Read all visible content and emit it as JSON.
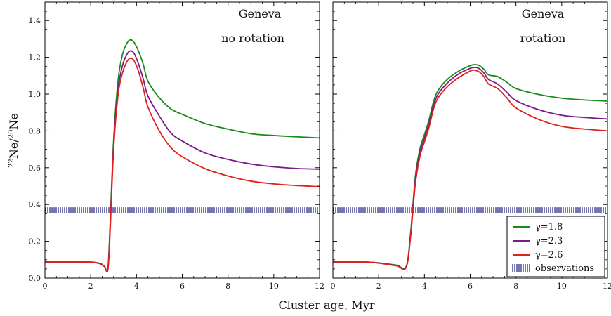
{
  "figure": {
    "xlabel": "Cluster age, Myr",
    "ylabel": "22Ne/20Ne",
    "ylabel_parts": {
      "sup1": "22",
      "base1": "Ne/",
      "sup2": "20",
      "base2": "Ne"
    },
    "colors": {
      "gamma_1_8": "#1a8a1a",
      "gamma_2_3": "#7a1a8a",
      "gamma_2_6": "#e0201a",
      "observations": "#3a3a8e",
      "model_label": "#1a1a8a"
    }
  },
  "legend": {
    "entries": [
      "γ=1.8",
      "γ=2.3",
      "γ=2.6",
      "observations"
    ],
    "placement": "bottom-right of right panel"
  },
  "chart_data": [
    {
      "type": "line",
      "panel_label": "no rotation",
      "model_label": "Geneva",
      "xlim": [
        0,
        12
      ],
      "ylim": [
        0,
        1.5
      ],
      "x_ticks": [
        "0",
        "2",
        "4",
        "6",
        "8",
        "10",
        "12"
      ],
      "y_ticks": [
        "0.0",
        "0.2",
        "0.4",
        "0.6",
        "0.8",
        "1.0",
        "1.2",
        "1.4"
      ],
      "observations": {
        "y_min": 0.355,
        "y_max": 0.385
      },
      "series": [
        {
          "name": "γ=1.8",
          "points": [
            [
              0,
              0.088
            ],
            [
              1,
              0.088
            ],
            [
              2,
              0.087
            ],
            [
              2.4,
              0.08
            ],
            [
              2.6,
              0.065
            ],
            [
              2.75,
              0.05
            ],
            [
              2.85,
              0.3
            ],
            [
              3.0,
              0.75
            ],
            [
              3.2,
              1.08
            ],
            [
              3.4,
              1.22
            ],
            [
              3.6,
              1.28
            ],
            [
              3.75,
              1.295
            ],
            [
              3.9,
              1.28
            ],
            [
              4.1,
              1.23
            ],
            [
              4.3,
              1.16
            ],
            [
              4.5,
              1.07
            ],
            [
              5.0,
              0.98
            ],
            [
              5.5,
              0.92
            ],
            [
              6.0,
              0.89
            ],
            [
              7.0,
              0.84
            ],
            [
              8.0,
              0.81
            ],
            [
              9.0,
              0.785
            ],
            [
              10.0,
              0.775
            ],
            [
              11.0,
              0.768
            ],
            [
              12.0,
              0.762
            ]
          ]
        },
        {
          "name": "γ=2.3",
          "points": [
            [
              0,
              0.088
            ],
            [
              1,
              0.088
            ],
            [
              2,
              0.087
            ],
            [
              2.4,
              0.079
            ],
            [
              2.6,
              0.063
            ],
            [
              2.75,
              0.048
            ],
            [
              2.85,
              0.28
            ],
            [
              3.0,
              0.72
            ],
            [
              3.2,
              1.03
            ],
            [
              3.4,
              1.16
            ],
            [
              3.6,
              1.22
            ],
            [
              3.75,
              1.235
            ],
            [
              3.9,
              1.22
            ],
            [
              4.1,
              1.16
            ],
            [
              4.3,
              1.08
            ],
            [
              4.5,
              0.99
            ],
            [
              5.0,
              0.88
            ],
            [
              5.5,
              0.79
            ],
            [
              6.0,
              0.745
            ],
            [
              7.0,
              0.68
            ],
            [
              8.0,
              0.645
            ],
            [
              9.0,
              0.62
            ],
            [
              10.0,
              0.605
            ],
            [
              11.0,
              0.596
            ],
            [
              12.0,
              0.592
            ]
          ]
        },
        {
          "name": "γ=2.6",
          "points": [
            [
              0,
              0.088
            ],
            [
              1,
              0.088
            ],
            [
              2,
              0.087
            ],
            [
              2.4,
              0.078
            ],
            [
              2.6,
              0.062
            ],
            [
              2.75,
              0.046
            ],
            [
              2.85,
              0.26
            ],
            [
              3.0,
              0.7
            ],
            [
              3.2,
              1.0
            ],
            [
              3.4,
              1.12
            ],
            [
              3.6,
              1.18
            ],
            [
              3.75,
              1.195
            ],
            [
              3.9,
              1.18
            ],
            [
              4.1,
              1.12
            ],
            [
              4.3,
              1.03
            ],
            [
              4.5,
              0.93
            ],
            [
              5.0,
              0.8
            ],
            [
              5.5,
              0.71
            ],
            [
              6.0,
              0.66
            ],
            [
              7.0,
              0.595
            ],
            [
              8.0,
              0.555
            ],
            [
              9.0,
              0.527
            ],
            [
              10.0,
              0.512
            ],
            [
              11.0,
              0.503
            ],
            [
              12.0,
              0.497
            ]
          ]
        }
      ]
    },
    {
      "type": "line",
      "panel_label": "rotation",
      "model_label": "Geneva",
      "xlim": [
        0,
        12
      ],
      "ylim": [
        0,
        1.5
      ],
      "x_ticks": [
        "0",
        "2",
        "4",
        "6",
        "8",
        "10",
        "12"
      ],
      "y_ticks": [
        "0.0",
        "0.2",
        "0.4",
        "0.6",
        "0.8",
        "1.0",
        "1.2",
        "1.4"
      ],
      "observations": {
        "y_min": 0.355,
        "y_max": 0.385
      },
      "series": [
        {
          "name": "γ=1.8",
          "points": [
            [
              0,
              0.088
            ],
            [
              1.5,
              0.087
            ],
            [
              2.2,
              0.08
            ],
            [
              2.8,
              0.07
            ],
            [
              3.2,
              0.062
            ],
            [
              3.4,
              0.25
            ],
            [
              3.6,
              0.55
            ],
            [
              3.8,
              0.7
            ],
            [
              4.0,
              0.78
            ],
            [
              4.2,
              0.86
            ],
            [
              4.4,
              0.96
            ],
            [
              4.6,
              1.02
            ],
            [
              5.0,
              1.08
            ],
            [
              5.5,
              1.125
            ],
            [
              6.0,
              1.155
            ],
            [
              6.2,
              1.16
            ],
            [
              6.4,
              1.155
            ],
            [
              6.6,
              1.135
            ],
            [
              6.8,
              1.105
            ],
            [
              7.2,
              1.095
            ],
            [
              7.6,
              1.065
            ],
            [
              8.0,
              1.03
            ],
            [
              9.0,
              0.998
            ],
            [
              10.0,
              0.978
            ],
            [
              11.0,
              0.968
            ],
            [
              12.0,
              0.962
            ]
          ]
        },
        {
          "name": "γ=2.3",
          "points": [
            [
              0,
              0.088
            ],
            [
              1.5,
              0.087
            ],
            [
              2.2,
              0.079
            ],
            [
              2.8,
              0.068
            ],
            [
              3.2,
              0.06
            ],
            [
              3.4,
              0.24
            ],
            [
              3.6,
              0.53
            ],
            [
              3.8,
              0.68
            ],
            [
              4.0,
              0.76
            ],
            [
              4.2,
              0.84
            ],
            [
              4.4,
              0.94
            ],
            [
              4.6,
              1.0
            ],
            [
              5.0,
              1.06
            ],
            [
              5.5,
              1.11
            ],
            [
              6.0,
              1.14
            ],
            [
              6.2,
              1.145
            ],
            [
              6.4,
              1.138
            ],
            [
              6.6,
              1.115
            ],
            [
              6.8,
              1.08
            ],
            [
              7.2,
              1.055
            ],
            [
              7.6,
              1.01
            ],
            [
              8.0,
              0.965
            ],
            [
              9.0,
              0.915
            ],
            [
              10.0,
              0.885
            ],
            [
              11.0,
              0.873
            ],
            [
              12.0,
              0.865
            ]
          ]
        },
        {
          "name": "γ=2.6",
          "points": [
            [
              0,
              0.088
            ],
            [
              1.5,
              0.087
            ],
            [
              2.2,
              0.078
            ],
            [
              2.8,
              0.066
            ],
            [
              3.2,
              0.058
            ],
            [
              3.4,
              0.23
            ],
            [
              3.6,
              0.51
            ],
            [
              3.8,
              0.66
            ],
            [
              4.0,
              0.74
            ],
            [
              4.2,
              0.82
            ],
            [
              4.4,
              0.92
            ],
            [
              4.6,
              0.98
            ],
            [
              5.0,
              1.04
            ],
            [
              5.5,
              1.09
            ],
            [
              6.0,
              1.125
            ],
            [
              6.2,
              1.13
            ],
            [
              6.4,
              1.12
            ],
            [
              6.6,
              1.095
            ],
            [
              6.8,
              1.055
            ],
            [
              7.2,
              1.03
            ],
            [
              7.6,
              0.98
            ],
            [
              8.0,
              0.925
            ],
            [
              9.0,
              0.862
            ],
            [
              10.0,
              0.825
            ],
            [
              11.0,
              0.81
            ],
            [
              12.0,
              0.8
            ]
          ]
        }
      ]
    }
  ]
}
